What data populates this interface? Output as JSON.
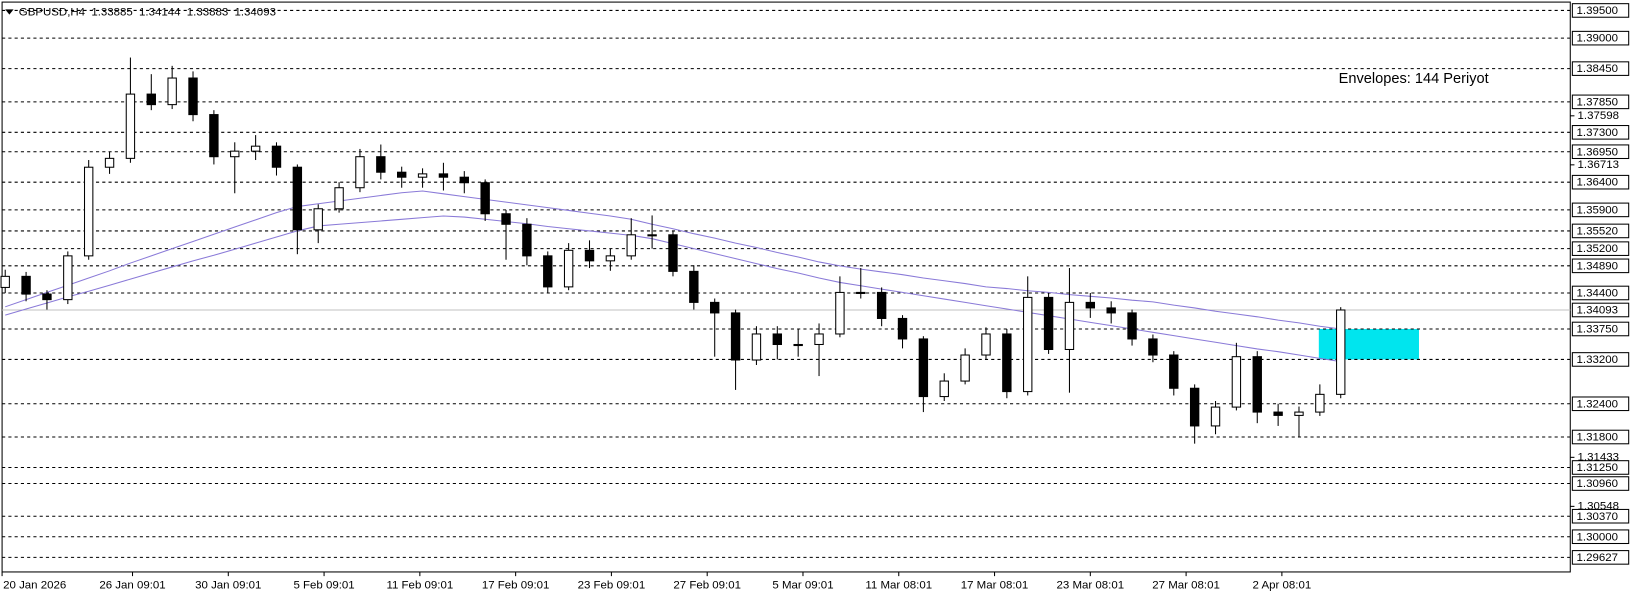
{
  "chart_data": {
    "type": "candlestick",
    "symbol": "GBPUSD,H4",
    "header_values": [
      1.33885,
      1.34144,
      1.33883,
      1.34093
    ],
    "annotation": "Envelopes: 144 Periyot",
    "annotation_color": "#4b3f9e",
    "ylim": [
      1.29364,
      1.39651
    ],
    "yticks": [
      1.37598,
      1.36713,
      1.31433,
      1.30548
    ],
    "levels": [
      {
        "value": 1.395,
        "label": "1.39500"
      },
      {
        "value": 1.39,
        "label": "1.39000"
      },
      {
        "value": 1.3845,
        "label": "1.38450"
      },
      {
        "value": 1.3785,
        "label": "1.37850"
      },
      {
        "value": 1.373,
        "label": "1.37300"
      },
      {
        "value": 1.3695,
        "label": "1.36950"
      },
      {
        "value": 1.364,
        "label": "1.36400"
      },
      {
        "value": 1.359,
        "label": "1.35900"
      },
      {
        "value": 1.3552,
        "label": "1.35520"
      },
      {
        "value": 1.352,
        "label": "1.35200"
      },
      {
        "value": 1.3489,
        "label": "1.34890"
      },
      {
        "value": 1.344,
        "label": "1.34400"
      },
      {
        "value": 1.3375,
        "label": "1.33750"
      },
      {
        "value": 1.332,
        "label": "1.33200"
      },
      {
        "value": 1.324,
        "label": "1.32400"
      },
      {
        "value": 1.318,
        "label": "1.31800"
      },
      {
        "value": 1.3125,
        "label": "1.31250"
      },
      {
        "value": 1.3096,
        "label": "1.30960"
      },
      {
        "value": 1.3037,
        "label": "1.30370"
      },
      {
        "value": 1.3,
        "label": "1.30000"
      },
      {
        "value": 1.29627,
        "label": "1.29627"
      }
    ],
    "price_line": 1.34093,
    "zone": [
      1.3375,
      1.332
    ],
    "zone_color": "#00e5ee",
    "x_labels": [
      "20 Jan 2026",
      "26 Jan 09:01",
      "30 Jan 09:01",
      "5 Feb 09:01",
      "11 Feb 09:01",
      "17 Feb 09:01",
      "23 Feb 09:01",
      "27 Feb 09:01",
      "5 Mar 09:01",
      "11 Mar 08:01",
      "17 Mar 08:01",
      "23 Mar 08:01",
      "27 Mar 08:01",
      "2 Apr 08:01"
    ],
    "ohlc": [
      [
        1.345,
        1.3482,
        1.344,
        1.347
      ],
      [
        1.347,
        1.3478,
        1.3425,
        1.3438
      ],
      [
        1.3438,
        1.3445,
        1.341,
        1.3428
      ],
      [
        1.3428,
        1.3515,
        1.342,
        1.3507
      ],
      [
        1.3507,
        1.368,
        1.35,
        1.3667
      ],
      [
        1.3667,
        1.3695,
        1.3655,
        1.3683
      ],
      [
        1.3683,
        1.3865,
        1.3675,
        1.3799
      ],
      [
        1.3799,
        1.3835,
        1.377,
        1.378
      ],
      [
        1.378,
        1.385,
        1.3772,
        1.3828
      ],
      [
        1.3828,
        1.384,
        1.375,
        1.3762
      ],
      [
        1.3762,
        1.377,
        1.3672,
        1.3686
      ],
      [
        1.3686,
        1.3712,
        1.362,
        1.3696
      ],
      [
        1.3696,
        1.3725,
        1.368,
        1.3705
      ],
      [
        1.3705,
        1.3712,
        1.3652,
        1.3667
      ],
      [
        1.3667,
        1.3672,
        1.351,
        1.3554
      ],
      [
        1.3554,
        1.36,
        1.353,
        1.3592
      ],
      [
        1.3592,
        1.364,
        1.3585,
        1.363
      ],
      [
        1.363,
        1.37,
        1.3622,
        1.3686
      ],
      [
        1.3686,
        1.3708,
        1.3645,
        1.3658
      ],
      [
        1.3658,
        1.3668,
        1.363,
        1.3649
      ],
      [
        1.3649,
        1.3665,
        1.363,
        1.3655
      ],
      [
        1.3655,
        1.3675,
        1.3625,
        1.3649
      ],
      [
        1.3649,
        1.366,
        1.362,
        1.3639
      ],
      [
        1.3639,
        1.3645,
        1.357,
        1.3583
      ],
      [
        1.3583,
        1.359,
        1.35,
        1.3564
      ],
      [
        1.3564,
        1.3575,
        1.349,
        1.3507
      ],
      [
        1.3507,
        1.3515,
        1.344,
        1.3451
      ],
      [
        1.3451,
        1.353,
        1.3445,
        1.3517
      ],
      [
        1.3517,
        1.3535,
        1.3485,
        1.3498
      ],
      [
        1.3498,
        1.352,
        1.348,
        1.3507
      ],
      [
        1.3507,
        1.3575,
        1.35,
        1.3545
      ],
      [
        1.3545,
        1.358,
        1.352,
        1.3545
      ],
      [
        1.3545,
        1.3552,
        1.347,
        1.3479
      ],
      [
        1.3479,
        1.349,
        1.341,
        1.3423
      ],
      [
        1.3423,
        1.343,
        1.3325,
        1.3404
      ],
      [
        1.3404,
        1.341,
        1.3265,
        1.3319
      ],
      [
        1.3319,
        1.338,
        1.331,
        1.3366
      ],
      [
        1.3366,
        1.338,
        1.332,
        1.3347
      ],
      [
        1.3347,
        1.3375,
        1.3325,
        1.3347
      ],
      [
        1.3347,
        1.3385,
        1.329,
        1.3366
      ],
      [
        1.3366,
        1.347,
        1.336,
        1.3441
      ],
      [
        1.3441,
        1.3485,
        1.343,
        1.3441
      ],
      [
        1.3441,
        1.345,
        1.338,
        1.3394
      ],
      [
        1.3394,
        1.34,
        1.334,
        1.3357
      ],
      [
        1.3357,
        1.3362,
        1.3225,
        1.3253
      ],
      [
        1.3253,
        1.3295,
        1.3245,
        1.3281
      ],
      [
        1.3281,
        1.334,
        1.3275,
        1.3328
      ],
      [
        1.3328,
        1.3378,
        1.332,
        1.3366
      ],
      [
        1.3366,
        1.3375,
        1.325,
        1.3262
      ],
      [
        1.3262,
        1.347,
        1.3255,
        1.3432
      ],
      [
        1.3432,
        1.344,
        1.333,
        1.3338
      ],
      [
        1.3338,
        1.3485,
        1.326,
        1.3423
      ],
      [
        1.3423,
        1.344,
        1.3395,
        1.3413
      ],
      [
        1.3413,
        1.3425,
        1.3385,
        1.3404
      ],
      [
        1.3404,
        1.341,
        1.3345,
        1.3357
      ],
      [
        1.3357,
        1.3365,
        1.3315,
        1.3328
      ],
      [
        1.3328,
        1.3335,
        1.3255,
        1.3268
      ],
      [
        1.3268,
        1.3275,
        1.3168,
        1.32
      ],
      [
        1.32,
        1.3245,
        1.3185,
        1.3234
      ],
      [
        1.3234,
        1.335,
        1.3228,
        1.3325
      ],
      [
        1.3325,
        1.3335,
        1.3205,
        1.3225
      ],
      [
        1.3225,
        1.324,
        1.32,
        1.3219
      ],
      [
        1.3219,
        1.3235,
        1.318,
        1.3225
      ],
      [
        1.3225,
        1.3275,
        1.3218,
        1.3257
      ],
      [
        1.3257,
        1.34144,
        1.325,
        1.34093
      ]
    ],
    "envelope_color": "#8a7ad8",
    "envelope_upper": [
      1.3415,
      1.3428,
      1.3441,
      1.3454,
      1.3467,
      1.348,
      1.3494,
      1.3507,
      1.352,
      1.3533,
      1.3546,
      1.3559,
      1.3572,
      1.3585,
      1.3596,
      1.3601,
      1.3606,
      1.3611,
      1.3616,
      1.3621,
      1.3624,
      1.3619,
      1.3614,
      1.3609,
      1.3604,
      1.3599,
      1.3594,
      1.3589,
      1.3584,
      1.3579,
      1.3573,
      1.3564,
      1.3556,
      1.3547,
      1.3539,
      1.353,
      1.3522,
      1.3513,
      1.3505,
      1.3496,
      1.3489,
      1.3483,
      1.3478,
      1.3473,
      1.3467,
      1.3462,
      1.3457,
      1.3451,
      1.3448,
      1.3444,
      1.3441,
      1.3437,
      1.3434,
      1.3431,
      1.3427,
      1.3424,
      1.3418,
      1.3413,
      1.3407,
      1.3402,
      1.3397,
      1.3391,
      1.3386,
      1.338,
      1.3375
    ],
    "envelope_lower": [
      1.34,
      1.3411,
      1.3422,
      1.3433,
      1.3443,
      1.3454,
      1.3465,
      1.3476,
      1.3487,
      1.3498,
      1.3508,
      1.3519,
      1.353,
      1.3541,
      1.3552,
      1.3561,
      1.3564,
      1.3567,
      1.357,
      1.3573,
      1.3576,
      1.3579,
      1.3577,
      1.3573,
      1.3569,
      1.3565,
      1.356,
      1.3556,
      1.3552,
      1.3548,
      1.3544,
      1.3538,
      1.3529,
      1.352,
      1.3511,
      1.3502,
      1.3493,
      1.3484,
      1.3476,
      1.3467,
      1.3459,
      1.3453,
      1.3447,
      1.3441,
      1.3435,
      1.3429,
      1.3423,
      1.3417,
      1.3411,
      1.3405,
      1.3399,
      1.3393,
      1.3387,
      1.3381,
      1.3375,
      1.3369,
      1.3363,
      1.3357,
      1.3351,
      1.3345,
      1.3339,
      1.3334,
      1.3328,
      1.3322,
      1.3316
    ]
  }
}
